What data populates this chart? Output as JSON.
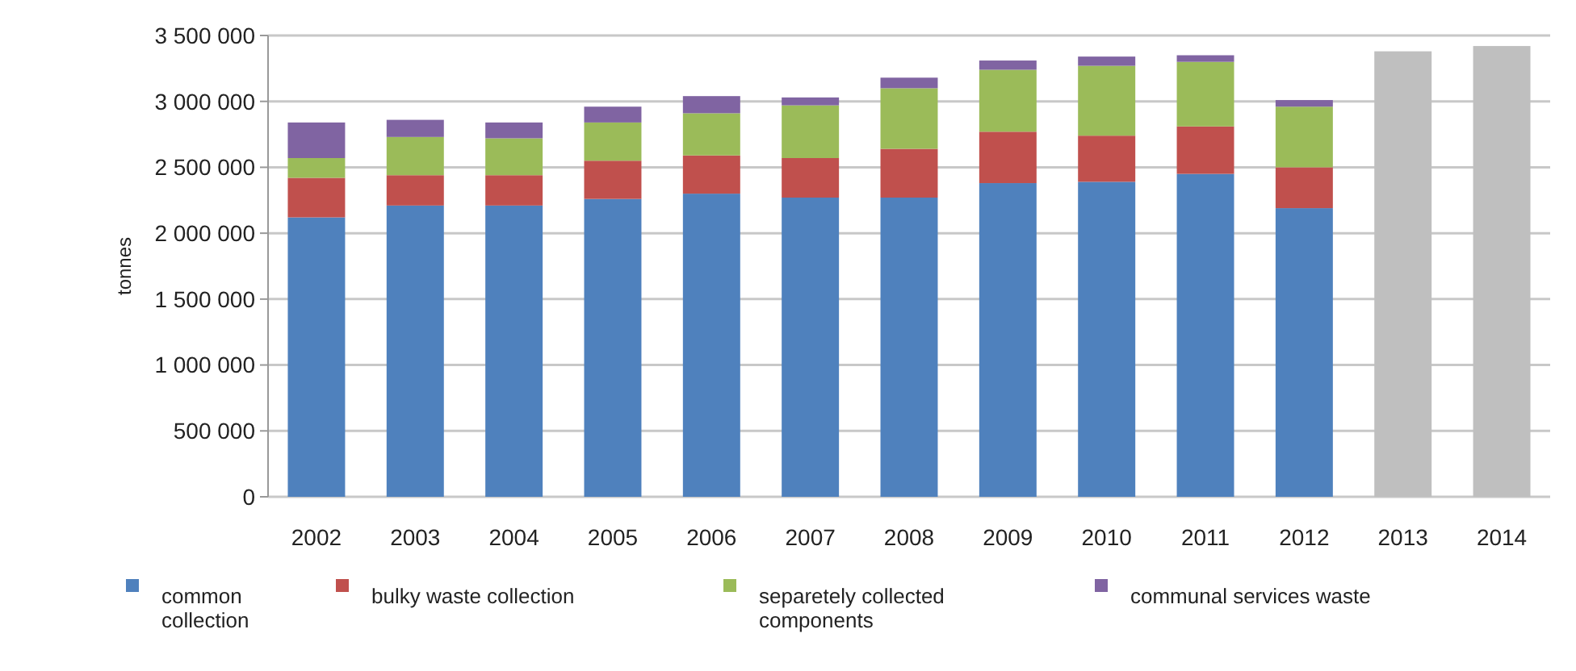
{
  "chart_data": {
    "type": "bar",
    "stacked": true,
    "ylabel": "tonnes",
    "categories": [
      "2002",
      "2003",
      "2004",
      "2005",
      "2006",
      "2007",
      "2008",
      "2009",
      "2010",
      "2011",
      "2012",
      "2013",
      "2014"
    ],
    "series": [
      {
        "name": "common collection",
        "color": "#4f81bd",
        "values": [
          2120000,
          2210000,
          2210000,
          2260000,
          2300000,
          2270000,
          2270000,
          2380000,
          2390000,
          2450000,
          2190000,
          null,
          null
        ]
      },
      {
        "name": "bulky waste collection",
        "color": "#c0504d",
        "values": [
          300000,
          230000,
          230000,
          290000,
          290000,
          300000,
          370000,
          390000,
          350000,
          360000,
          310000,
          null,
          null
        ]
      },
      {
        "name": "separetely collected components",
        "color": "#9bbb59",
        "values": [
          150000,
          290000,
          280000,
          290000,
          320000,
          400000,
          460000,
          470000,
          530000,
          490000,
          460000,
          null,
          null
        ]
      },
      {
        "name": "communal services waste",
        "color": "#8064a2",
        "values": [
          270000,
          130000,
          120000,
          120000,
          130000,
          60000,
          80000,
          70000,
          70000,
          50000,
          50000,
          null,
          null
        ]
      },
      {
        "color": "#bfbfbf",
        "values": [
          null,
          null,
          null,
          null,
          null,
          null,
          null,
          null,
          null,
          null,
          null,
          3380000,
          3420000
        ]
      }
    ],
    "ylim": [
      0,
      3500000
    ],
    "yticks": [
      0,
      {
        "value": 500000,
        "label": "500 000"
      },
      {
        "value": 1000000,
        "label": "1 000 000"
      },
      {
        "value": 1500000,
        "label": "1 500 000"
      },
      {
        "value": 2000000,
        "label": "2 000 000"
      },
      {
        "value": 2500000,
        "label": "2 500 000"
      },
      {
        "value": 3000000,
        "label": "3 000 000"
      },
      {
        "value": 3500000,
        "label": "3 500 000"
      }
    ],
    "grid": "y",
    "legend": "bottom"
  }
}
